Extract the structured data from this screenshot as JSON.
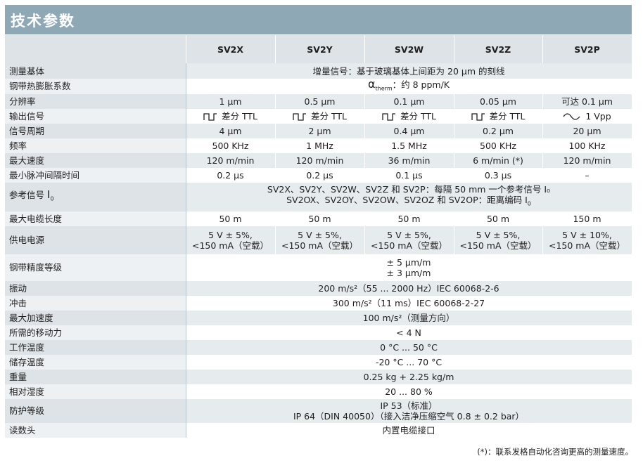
{
  "title": "技术参数",
  "models": [
    "SV2X",
    "SV2Y",
    "SV2W",
    "SV2Z",
    "SV2P"
  ],
  "rows": {
    "measuring_base": {
      "label": "测量基体",
      "value": "增量信号：基于玻璃基体上间距为 20 µm 的刻线"
    },
    "expansion": {
      "label": "钢带热膨胀系数",
      "symbol": "α",
      "sub": "therm",
      "value": "：约 8 ppm/K"
    },
    "resolution": {
      "label": "分辨率",
      "values": [
        "1 µm",
        "0.5 µm",
        "0.1 µm",
        "0.05 µm",
        "可达 0.1 µm"
      ]
    },
    "output": {
      "label": "输出信号",
      "values": [
        "差分 TTL",
        "差分 TTL",
        "差分 TTL",
        "差分 TTL",
        "1 Vpp"
      ],
      "icons": [
        "square-wave-icon",
        "square-wave-icon",
        "square-wave-icon",
        "square-wave-icon",
        "sine-wave-icon"
      ]
    },
    "period": {
      "label": "信号周期",
      "values": [
        "4 µm",
        "2 µm",
        "0.4 µm",
        "0.2 µm",
        "20 µm"
      ]
    },
    "frequency": {
      "label": "频率",
      "values": [
        "500 KHz",
        "1 MHz",
        "1.5 MHz",
        "500 KHz",
        "100 KHz"
      ]
    },
    "max_speed": {
      "label": "最大速度",
      "values": [
        "120 m/min",
        "120 m/min",
        "36 m/min",
        "6 m/min (*)",
        "120 m/min"
      ]
    },
    "pulse_interval": {
      "label": "最小脉冲间隔时间",
      "values": [
        "0.2 µs",
        "0.2 µs",
        "0.1 µs",
        "0.3 µs",
        "–"
      ]
    },
    "reference": {
      "label": "参考信号",
      "label_symbol": "I",
      "label_sub": "0",
      "line1": "SV2X、SV2Y、SV2W、SV2Z 和 SV2P：每隔 50 mm 一个参考信号 I₀",
      "line2": "SV2OX、SV2OY、SV2OW、SV2OZ 和 SV2OP：距离编码 I",
      "line2_sub": "0"
    },
    "cable": {
      "label": "最大电缆长度",
      "values": [
        "50 m",
        "50 m",
        "50 m",
        "50 m",
        "150 m"
      ]
    },
    "power": {
      "label": "供电电源",
      "line1": [
        "5 V ± 5%,",
        "5 V ± 5%,",
        "5 V ± 5%,",
        "5 V ± 5%,",
        "5 V ± 10%,"
      ],
      "line2": [
        "<150 mA（空载）",
        "<150 mA（空载）",
        "<150 mA（空载）",
        "<150 mA（空载）",
        "<150 mA（空载）"
      ]
    },
    "accuracy": {
      "label": "钢带精度等级",
      "line1": "± 5 µm/m",
      "line2": "± 3 µm/m"
    },
    "vibration": {
      "label": "振动",
      "value": "200 m/s²（55 ... 2000 Hz）IEC 60068-2-6"
    },
    "shock": {
      "label": "冲击",
      "value": "300 m/s²（11 ms）IEC 60068-2-27"
    },
    "acceleration": {
      "label": "最大加速度",
      "value": "100 m/s²（测量方向）"
    },
    "force": {
      "label": "所需的移动力",
      "value": "< 4 N"
    },
    "op_temp": {
      "label": "工作温度",
      "value": "0 °C ... 50 °C"
    },
    "storage_temp": {
      "label": "储存温度",
      "value": "-20 °C ... 70 °C"
    },
    "weight": {
      "label": "重量",
      "value": "0.25 kg + 2.25 kg/m"
    },
    "humidity": {
      "label": "相对湿度",
      "value": "20 ... 80 %"
    },
    "protection": {
      "label": "防护等级",
      "line1": "IP 53（标准）",
      "line2": "IP 64（DIN 40050）（接入洁净压缩空气 0.8 ± 0.2 bar）"
    },
    "reading_head": {
      "label": "读数头",
      "value": "内置电缆接口"
    }
  },
  "footnote": "(*)：联系发格自动化咨询更高的测量速度。"
}
